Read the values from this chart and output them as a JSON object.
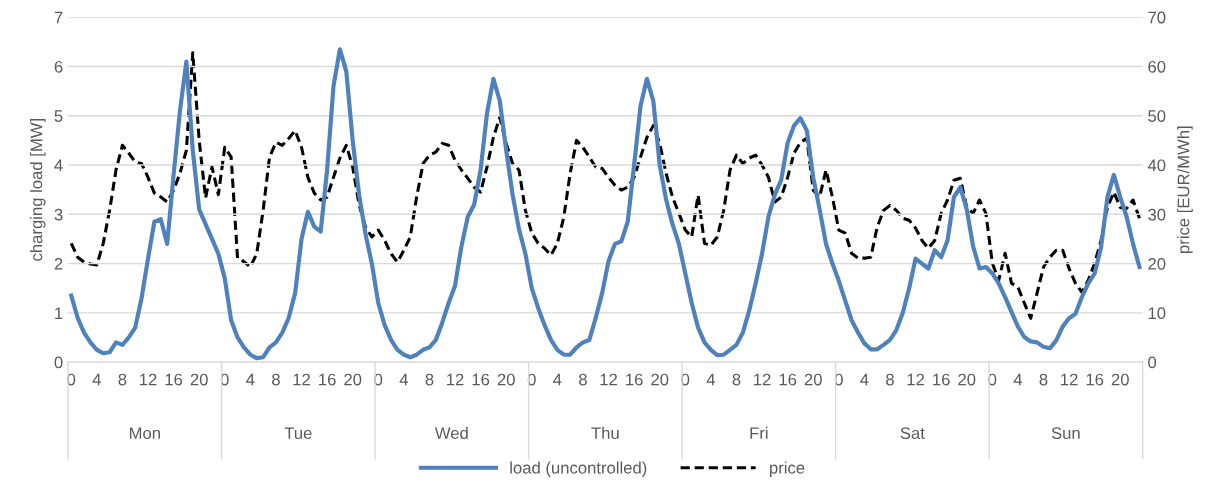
{
  "chart_data": {
    "type": "line",
    "categories": [
      "0",
      null,
      null,
      null,
      "4",
      null,
      null,
      null,
      "8",
      null,
      null,
      null,
      "12",
      null,
      null,
      null,
      "16",
      null,
      null,
      null,
      "20",
      null,
      null,
      null,
      "0",
      null,
      null,
      null,
      "4",
      null,
      null,
      null,
      "8",
      null,
      null,
      null,
      "12",
      null,
      null,
      null,
      "16",
      null,
      null,
      null,
      "20",
      null,
      null,
      null,
      "0",
      null,
      null,
      null,
      "4",
      null,
      null,
      null,
      "8",
      null,
      null,
      null,
      "12",
      null,
      null,
      null,
      "16",
      null,
      null,
      null,
      "20",
      null,
      null,
      null,
      "0",
      null,
      null,
      null,
      "4",
      null,
      null,
      null,
      "8",
      null,
      null,
      null,
      "12",
      null,
      null,
      null,
      "16",
      null,
      null,
      null,
      "20",
      null,
      null,
      null,
      "0",
      null,
      null,
      null,
      "4",
      null,
      null,
      null,
      "8",
      null,
      null,
      null,
      "12",
      null,
      null,
      null,
      "16",
      null,
      null,
      null,
      "20",
      null,
      null,
      null,
      "0",
      null,
      null,
      null,
      "4",
      null,
      null,
      null,
      "8",
      null,
      null,
      null,
      "12",
      null,
      null,
      null,
      "16",
      null,
      null,
      null,
      "20",
      null,
      null,
      null,
      "0",
      null,
      null,
      null,
      "4",
      null,
      null,
      null,
      "8",
      null,
      null,
      null,
      "12",
      null,
      null,
      null,
      "16",
      null,
      null,
      null,
      "20",
      null,
      null,
      null
    ],
    "annotations": [
      "Mon",
      "Tue",
      "Wed",
      "Thu",
      "Fri",
      "Sat",
      "Sun"
    ],
    "ylabel": "charging load [MW]",
    "y2label": "price [EUR/MWh]",
    "ylim": [
      0,
      7
    ],
    "yticks": [
      0,
      1,
      2,
      3,
      4,
      5,
      6,
      7
    ],
    "y2lim": [
      0,
      70
    ],
    "y2ticks": [
      0,
      10,
      20,
      30,
      40,
      50,
      60,
      70
    ],
    "grid": "y",
    "legend": "bottom",
    "marker": "none",
    "series": [
      {
        "name": "load (uncontrolled)",
        "color": "#4f81bd",
        "line_style": "solid",
        "values": [
          1.35,
          0.9,
          0.6,
          0.4,
          0.25,
          0.18,
          0.2,
          0.4,
          0.35,
          0.5,
          0.7,
          1.3,
          2.1,
          2.85,
          2.9,
          2.4,
          3.8,
          5.1,
          6.1,
          4.3,
          3.1,
          2.8,
          2.5,
          2.2,
          1.7,
          0.85,
          0.5,
          0.3,
          0.15,
          0.08,
          0.1,
          0.3,
          0.4,
          0.6,
          0.9,
          1.4,
          2.5,
          3.05,
          2.75,
          2.65,
          3.9,
          5.6,
          6.35,
          5.9,
          4.5,
          3.4,
          2.6,
          2.0,
          1.2,
          0.75,
          0.45,
          0.25,
          0.15,
          0.1,
          0.15,
          0.25,
          0.3,
          0.45,
          0.8,
          1.2,
          1.55,
          2.35,
          2.95,
          3.2,
          3.9,
          5.05,
          5.75,
          5.3,
          4.3,
          3.4,
          2.7,
          2.2,
          1.5,
          1.1,
          0.75,
          0.45,
          0.25,
          0.15,
          0.15,
          0.3,
          0.4,
          0.45,
          0.9,
          1.4,
          2.05,
          2.4,
          2.45,
          2.85,
          4.0,
          5.2,
          5.75,
          5.3,
          4.0,
          3.3,
          2.8,
          2.4,
          1.8,
          1.2,
          0.7,
          0.4,
          0.25,
          0.14,
          0.15,
          0.25,
          0.35,
          0.6,
          1.05,
          1.6,
          2.2,
          2.95,
          3.4,
          3.7,
          4.45,
          4.8,
          4.95,
          4.7,
          3.75,
          3.1,
          2.4,
          2.0,
          1.65,
          1.25,
          0.85,
          0.6,
          0.38,
          0.26,
          0.26,
          0.35,
          0.45,
          0.65,
          1.0,
          1.5,
          2.1,
          2.0,
          1.9,
          2.27,
          2.13,
          2.47,
          3.35,
          3.55,
          3.1,
          2.35,
          1.9,
          1.93,
          1.8,
          1.6,
          1.32,
          1.02,
          0.72,
          0.51,
          0.42,
          0.4,
          0.31,
          0.28,
          0.44,
          0.72,
          0.89,
          0.98,
          1.32,
          1.6,
          1.8,
          2.33,
          3.35,
          3.8,
          3.35,
          2.95,
          2.4,
          1.93
        ]
      },
      {
        "name": "price",
        "color": "#000000",
        "line_style": "dashed",
        "axis": "y2",
        "values": [
          24.1,
          21.3,
          20.3,
          19.9,
          19.7,
          24.1,
          30.8,
          39,
          44,
          42.4,
          40.6,
          40.3,
          37.5,
          34.3,
          33.5,
          32.5,
          34.9,
          38.3,
          43,
          62.8,
          45,
          33.3,
          39.6,
          34,
          43.6,
          41.6,
          21.1,
          20.4,
          19.3,
          22,
          30.8,
          41.6,
          44.6,
          44,
          45.4,
          47,
          43.6,
          37.5,
          34.3,
          32.9,
          33.5,
          37.5,
          41.4,
          44,
          39.6,
          32,
          27.4,
          25.4,
          26.8,
          24.7,
          22,
          20.3,
          22.7,
          25.4,
          33.5,
          40.3,
          42,
          42.6,
          44.4,
          44,
          41,
          39,
          37.3,
          35.5,
          34.5,
          39.6,
          45.6,
          49.7,
          44.4,
          40.3,
          39,
          30.8,
          26.2,
          24.1,
          23.1,
          21.7,
          24.1,
          29.4,
          38.3,
          45,
          43.6,
          41.6,
          39.6,
          39.3,
          37.5,
          35.9,
          34.9,
          35.5,
          37.5,
          41.6,
          45.6,
          48,
          44.4,
          38.3,
          33.5,
          30.2,
          26.8,
          25.4,
          33.9,
          24.1,
          23.7,
          25.4,
          30.8,
          39,
          42,
          40.3,
          41.4,
          42,
          40,
          37.5,
          32.5,
          33.5,
          37.5,
          42.4,
          44.6,
          45.4,
          34.9,
          33.5,
          39,
          33.5,
          26.8,
          26.2,
          22.1,
          21.1,
          21.1,
          21.3,
          27.4,
          30.8,
          31.8,
          30.8,
          29.2,
          28.8,
          27.2,
          24.7,
          23.1,
          24.7,
          30.2,
          32.9,
          36.9,
          37.3,
          31.4,
          30.2,
          32.9,
          30.2,
          20.1,
          16.6,
          22.1,
          16,
          15.2,
          12,
          8.9,
          14,
          19.3,
          21.3,
          22.7,
          22.7,
          19,
          16,
          14.2,
          16.6,
          20.1,
          24.7,
          31.4,
          34.5,
          31.4,
          31.2,
          32.9,
          29.2
        ]
      }
    ]
  }
}
